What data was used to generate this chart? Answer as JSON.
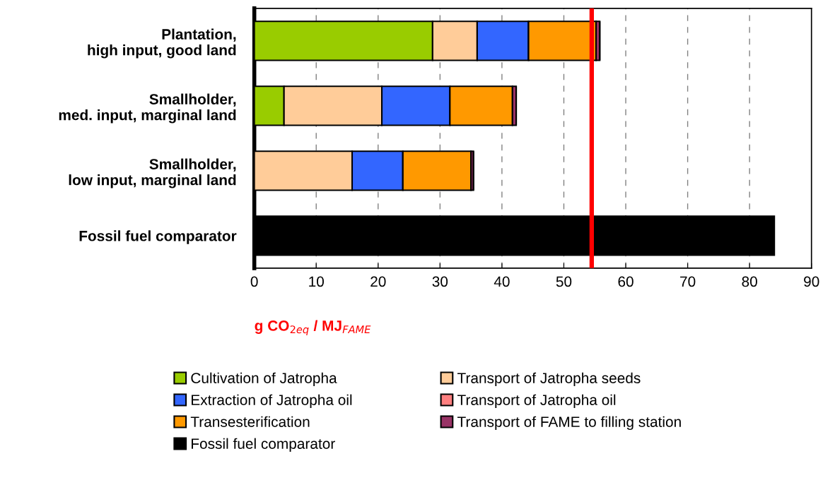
{
  "chart_data": {
    "type": "bar",
    "orientation": "horizontal",
    "stacked": true,
    "categories": [
      "Plantation,\nhigh input, good land",
      "Smallholder,\nmed. input, marginal land",
      "Smallholder,\nlow input, marginal land",
      "Fossil fuel comparator"
    ],
    "series": [
      {
        "name": "Cultivation of Jatropha",
        "color": "#99cc00",
        "values": [
          28.8,
          4.8,
          0,
          0
        ]
      },
      {
        "name": "Transport of Jatropha seeds",
        "color": "#ffcc99",
        "values": [
          7.2,
          15.8,
          15.8,
          0
        ]
      },
      {
        "name": "Extraction of Jatropha oil",
        "color": "#3366ff",
        "values": [
          8.3,
          11.0,
          8.2,
          0
        ]
      },
      {
        "name": "Transport of Jatropha oil",
        "color": "#ff8080",
        "values": [
          0,
          0,
          0,
          0
        ]
      },
      {
        "name": "Transesterification",
        "color": "#ff9900",
        "values": [
          10.9,
          10.1,
          11.0,
          0
        ]
      },
      {
        "name": "Transport of FAME to filling station",
        "color": "#993366",
        "values": [
          0.6,
          0.6,
          0.4,
          0
        ]
      },
      {
        "name": "Fossil fuel comparator",
        "color": "#000000",
        "values": [
          0,
          0,
          0,
          84
        ]
      }
    ],
    "xlabel": "g CO$_{2eq}$ / MJ$_{FAME}$",
    "xlim": [
      0,
      90
    ],
    "xticks": [
      0,
      10,
      20,
      30,
      40,
      50,
      60,
      70,
      80,
      90
    ],
    "ref_lines": [
      {
        "axis": "x",
        "value": 54.5,
        "color": "#ff0000"
      }
    ],
    "grid": "x",
    "legend": "bottom"
  }
}
